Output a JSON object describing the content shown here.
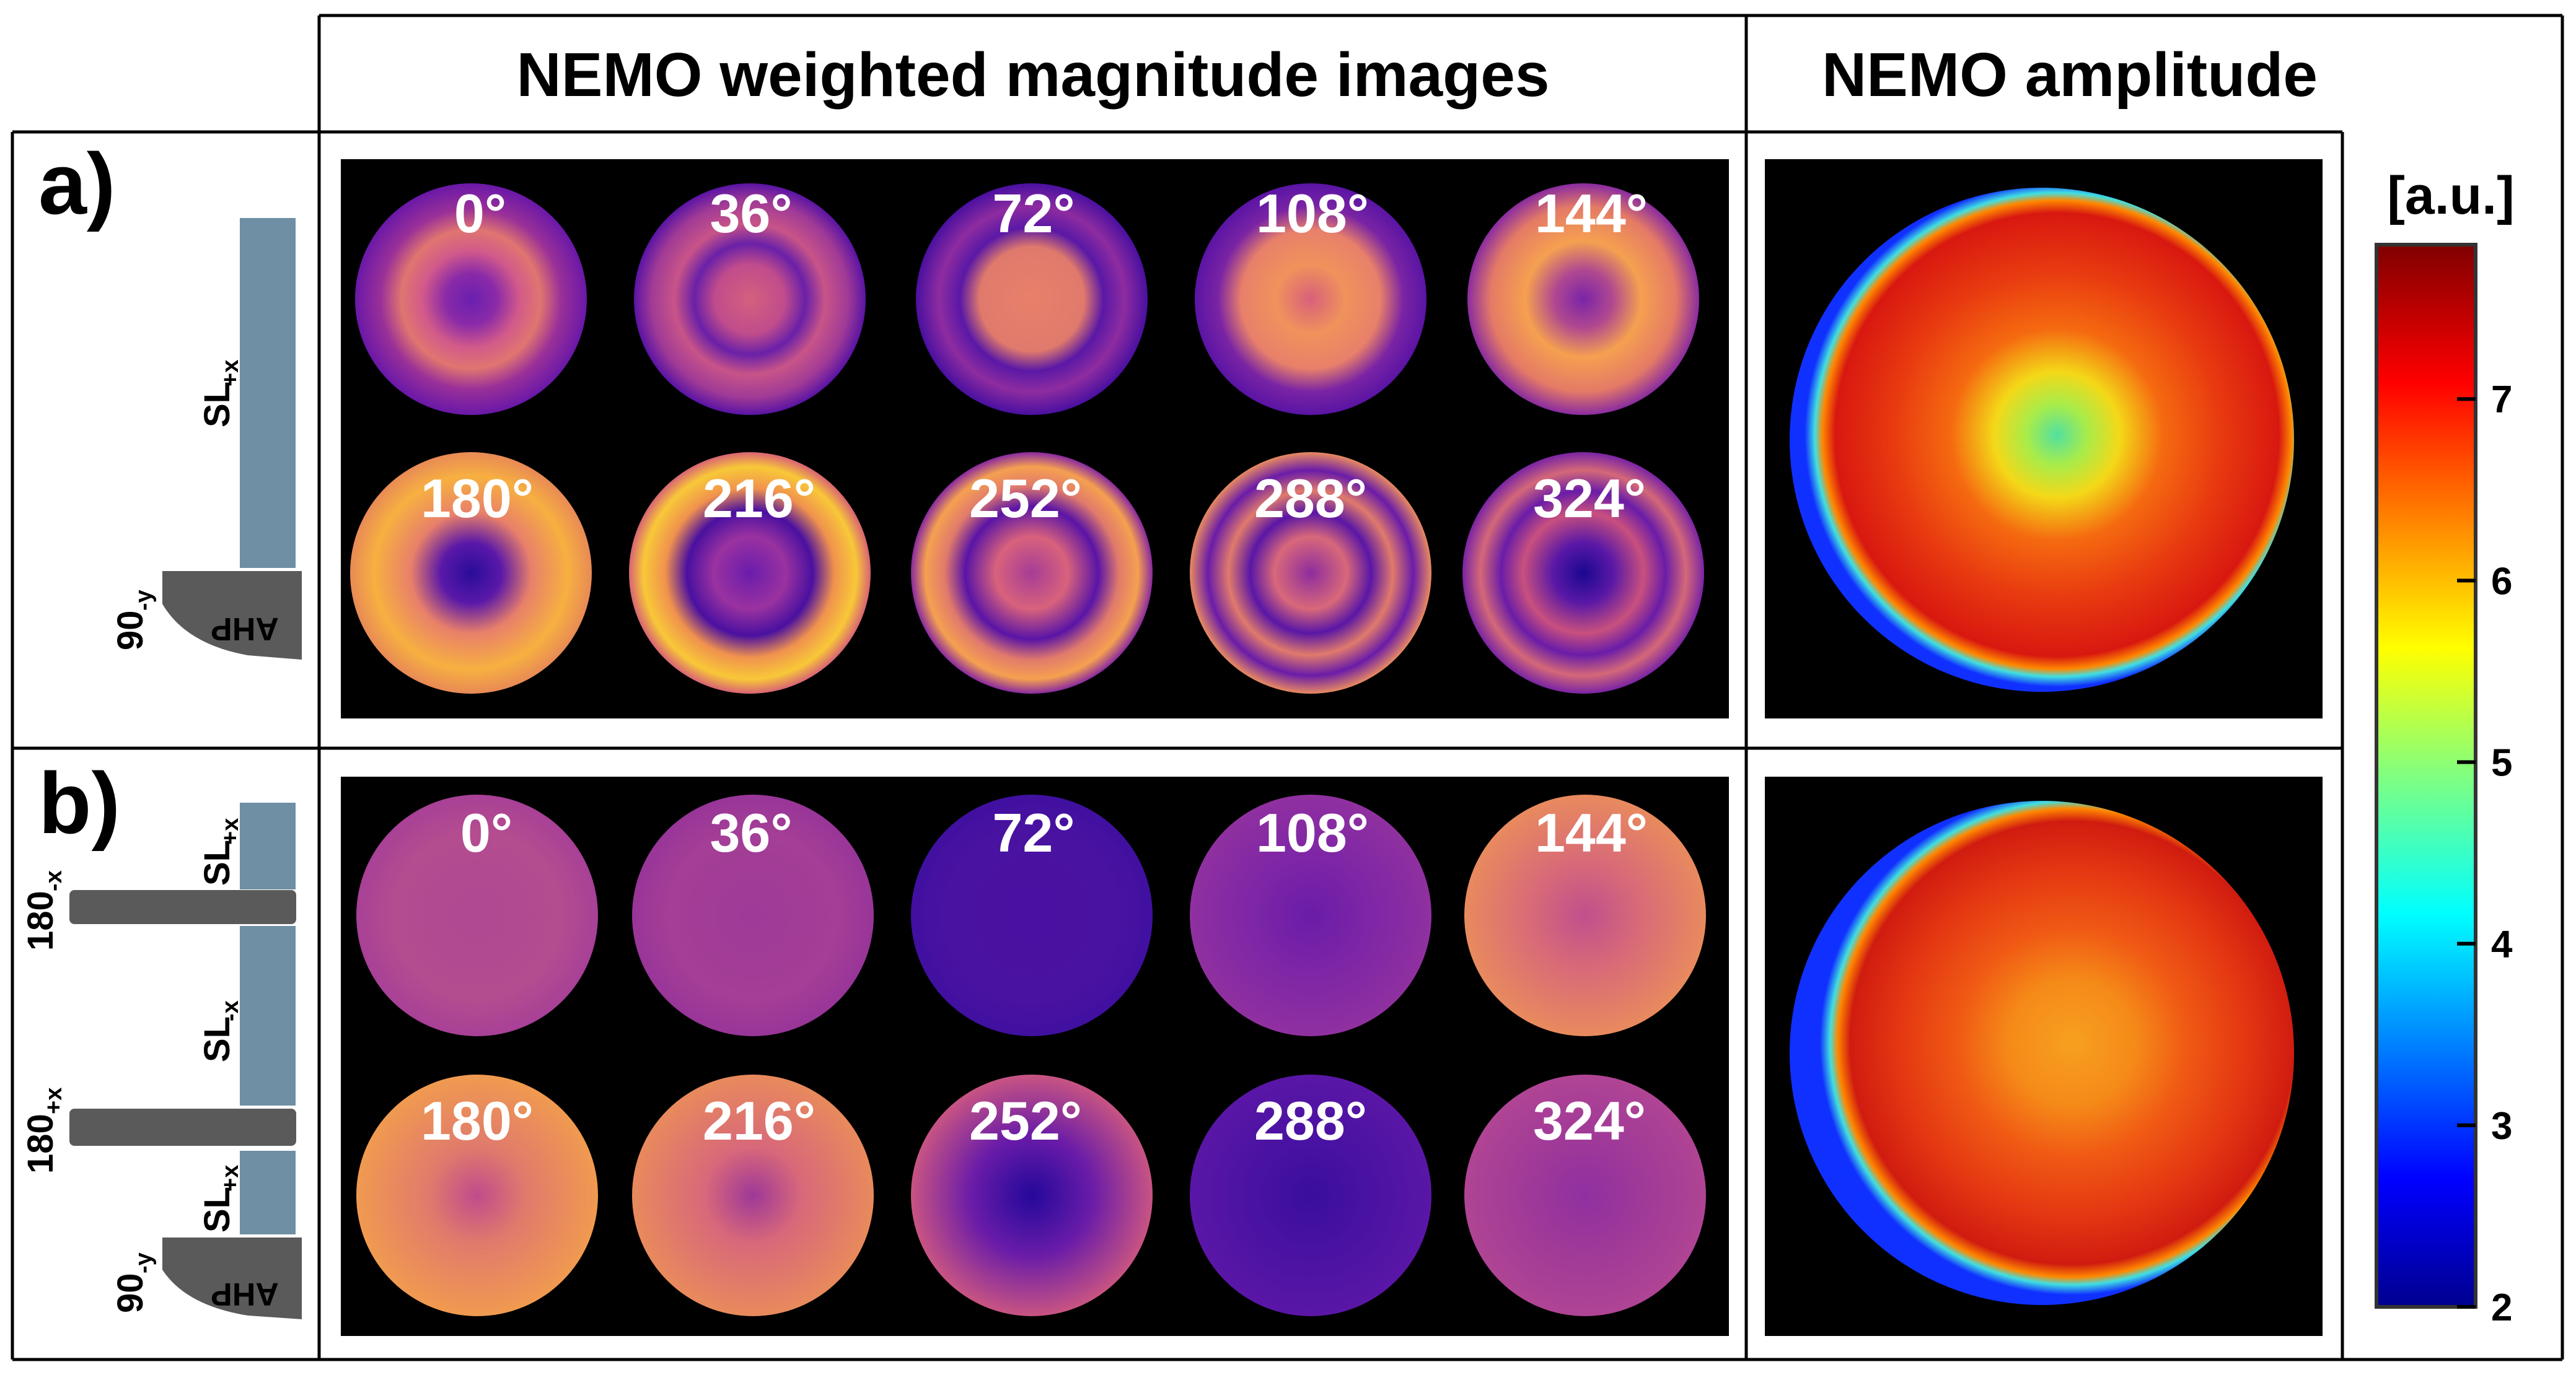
{
  "headers": {
    "weighted": "NEMO weighted magnitude images",
    "amplitude": "NEMO amplitude"
  },
  "panels": [
    {
      "label": "a)",
      "angles": [
        "0°",
        "36°",
        "72°",
        "108°",
        "144°",
        "180°",
        "216°",
        "252°",
        "288°",
        "324°"
      ],
      "sequence": {
        "sl_main": "SL",
        "sl_main_sub": "+x",
        "excite": "90",
        "excite_sub": "-y",
        "ahp": "AHP"
      }
    },
    {
      "label": "b)",
      "angles": [
        "0°",
        "36°",
        "72°",
        "108°",
        "144°",
        "180°",
        "216°",
        "252°",
        "288°",
        "324°"
      ],
      "sequence": {
        "sl1": "SL",
        "sl1_sub": "+x",
        "sl2": "SL",
        "sl2_sub": "-x",
        "sl3": "SL",
        "sl3_sub": "+x",
        "refocus1": "180",
        "refocus1_sub": "-x",
        "refocus2": "180",
        "refocus2_sub": "+x",
        "excite": "90",
        "excite_sub": "-y",
        "ahp": "AHP"
      }
    }
  ],
  "colorbar": {
    "unit": "[a.u.]",
    "ticks": [
      "2",
      "3",
      "4",
      "5",
      "6",
      "7"
    ],
    "range": [
      2,
      7.85
    ],
    "colormap": "jet"
  }
}
